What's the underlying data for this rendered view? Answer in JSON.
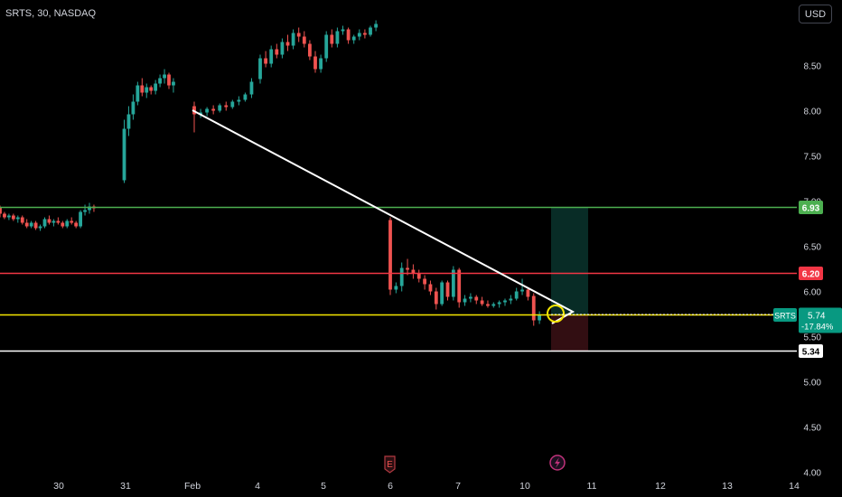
{
  "header": {
    "title": "SRTS, 30, NASDAQ",
    "currency": "USD"
  },
  "colors": {
    "background": "#000000",
    "up": "#26a69a",
    "down": "#ef5350",
    "line_green": "#4caf50",
    "line_red": "#f23645",
    "line_yellow": "#f5e600",
    "line_white": "#ffffff",
    "text": "#d1d4dc"
  },
  "price_axis": {
    "ticks": [
      "8.50",
      "8.00",
      "7.50",
      "7.00",
      "6.50",
      "6.00",
      "5.50",
      "5.00",
      "4.50",
      "4.00"
    ]
  },
  "time_axis": {
    "ticks": [
      "30",
      "31",
      "Feb",
      "4",
      "5",
      "6",
      "7",
      "10",
      "11",
      "12",
      "13",
      "14"
    ]
  },
  "events": {
    "earnings_label": "E",
    "dividend_icon": "lightning-icon"
  },
  "chart_data": {
    "type": "candlestick",
    "symbol": "SRTS",
    "interval": "30",
    "exchange": "NASDAQ",
    "ylim": [
      4.0,
      8.95
    ],
    "x_ticks": [
      "30",
      "31",
      "Feb",
      "4",
      "5",
      "6",
      "7",
      "10",
      "11",
      "12",
      "13",
      "14"
    ],
    "horizontal_lines": [
      {
        "price": 6.93,
        "label": "6.93",
        "color": "#4caf50"
      },
      {
        "price": 6.2,
        "label": "6.20",
        "color": "#f23645"
      },
      {
        "price": 5.74,
        "label": "5.74",
        "color": "#f5e600"
      },
      {
        "price": 5.34,
        "label": "5.34",
        "color": "#ffffff"
      }
    ],
    "last_price": {
      "symbol": "SRTS",
      "price": "5.74",
      "change": "-17.84%"
    },
    "candles": [
      [
        6.93,
        6.95,
        6.82,
        6.86
      ],
      [
        6.86,
        6.88,
        6.8,
        6.82
      ],
      [
        6.82,
        6.86,
        6.79,
        6.84
      ],
      [
        6.84,
        6.86,
        6.78,
        6.8
      ],
      [
        6.8,
        6.84,
        6.76,
        6.82
      ],
      [
        6.82,
        6.84,
        6.74,
        6.76
      ],
      [
        6.76,
        6.8,
        6.7,
        6.72
      ],
      [
        6.72,
        6.78,
        6.7,
        6.76
      ],
      [
        6.76,
        6.78,
        6.68,
        6.7
      ],
      [
        6.7,
        6.74,
        6.67,
        6.72
      ],
      [
        6.72,
        6.82,
        6.7,
        6.8
      ],
      [
        6.8,
        6.84,
        6.74,
        6.76
      ],
      [
        6.76,
        6.8,
        6.72,
        6.78
      ],
      [
        6.78,
        6.82,
        6.74,
        6.76
      ],
      [
        6.76,
        6.78,
        6.7,
        6.72
      ],
      [
        6.72,
        6.8,
        6.7,
        6.78
      ],
      [
        6.78,
        6.82,
        6.74,
        6.76
      ],
      [
        6.76,
        6.78,
        6.7,
        6.72
      ],
      [
        6.72,
        6.9,
        6.7,
        6.88
      ],
      [
        6.88,
        6.96,
        6.84,
        6.9
      ],
      [
        6.9,
        6.98,
        6.86,
        6.94
      ],
      [
        6.94,
        6.96,
        6.88,
        6.92
      ],
      [
        7.23,
        7.9,
        7.2,
        7.8
      ],
      [
        7.8,
        8.05,
        7.72,
        7.96
      ],
      [
        7.96,
        8.18,
        7.9,
        8.1
      ],
      [
        8.1,
        8.32,
        8.06,
        8.28
      ],
      [
        8.28,
        8.36,
        8.16,
        8.2
      ],
      [
        8.2,
        8.3,
        8.14,
        8.26
      ],
      [
        8.26,
        8.28,
        8.18,
        8.22
      ],
      [
        8.22,
        8.34,
        8.18,
        8.3
      ],
      [
        8.3,
        8.4,
        8.26,
        8.36
      ],
      [
        8.36,
        8.46,
        8.3,
        8.4
      ],
      [
        8.4,
        8.42,
        8.24,
        8.28
      ],
      [
        8.28,
        8.36,
        8.2,
        8.32
      ],
      [
        8.05,
        8.1,
        7.76,
        7.96
      ],
      [
        7.96,
        8.02,
        7.92,
        7.98
      ],
      [
        7.98,
        8.04,
        7.94,
        8.02
      ],
      [
        8.02,
        8.06,
        7.96,
        8.0
      ],
      [
        8.0,
        8.08,
        7.98,
        8.06
      ],
      [
        8.06,
        8.1,
        8.0,
        8.04
      ],
      [
        8.04,
        8.12,
        8.02,
        8.1
      ],
      [
        8.1,
        8.16,
        8.06,
        8.12
      ],
      [
        8.12,
        8.2,
        8.1,
        8.18
      ],
      [
        8.18,
        8.36,
        8.14,
        8.32
      ],
      [
        8.35,
        8.62,
        8.3,
        8.58
      ],
      [
        8.58,
        8.66,
        8.48,
        8.52
      ],
      [
        8.52,
        8.72,
        8.48,
        8.68
      ],
      [
        8.68,
        8.74,
        8.58,
        8.62
      ],
      [
        8.62,
        8.8,
        8.58,
        8.76
      ],
      [
        8.76,
        8.84,
        8.66,
        8.72
      ],
      [
        8.72,
        8.9,
        8.68,
        8.86
      ],
      [
        8.86,
        8.92,
        8.76,
        8.82
      ],
      [
        8.82,
        8.88,
        8.7,
        8.74
      ],
      [
        8.74,
        8.78,
        8.56,
        8.6
      ],
      [
        8.6,
        8.66,
        8.42,
        8.46
      ],
      [
        8.46,
        8.62,
        8.42,
        8.58
      ],
      [
        8.58,
        8.88,
        8.54,
        8.84
      ],
      [
        8.84,
        8.9,
        8.7,
        8.74
      ],
      [
        8.74,
        8.92,
        8.7,
        8.88
      ],
      [
        8.88,
        8.94,
        8.84,
        8.9
      ],
      [
        8.9,
        8.92,
        8.74,
        8.78
      ],
      [
        8.78,
        8.84,
        8.74,
        8.82
      ],
      [
        8.82,
        8.9,
        8.78,
        8.86
      ],
      [
        8.86,
        8.9,
        8.8,
        8.84
      ],
      [
        8.84,
        8.94,
        8.82,
        8.92
      ],
      [
        8.92,
        9.0,
        8.88,
        8.96
      ],
      [
        6.79,
        6.82,
        5.96,
        6.02
      ],
      [
        6.02,
        6.1,
        5.98,
        6.06
      ],
      [
        6.06,
        6.32,
        6.0,
        6.26
      ],
      [
        6.26,
        6.36,
        6.18,
        6.24
      ],
      [
        6.24,
        6.3,
        6.14,
        6.2
      ],
      [
        6.2,
        6.24,
        6.1,
        6.14
      ],
      [
        6.14,
        6.18,
        6.02,
        6.08
      ],
      [
        6.08,
        6.12,
        5.96,
        6.0
      ],
      [
        6.0,
        6.04,
        5.8,
        5.86
      ],
      [
        5.86,
        6.12,
        5.84,
        6.1
      ],
      [
        6.1,
        6.12,
        5.9,
        5.94
      ],
      [
        5.94,
        6.28,
        5.9,
        6.24
      ],
      [
        6.24,
        6.26,
        5.82,
        5.88
      ],
      [
        5.88,
        5.96,
        5.84,
        5.92
      ],
      [
        5.92,
        5.98,
        5.88,
        5.94
      ],
      [
        5.94,
        5.96,
        5.86,
        5.9
      ],
      [
        5.9,
        5.94,
        5.84,
        5.86
      ],
      [
        5.86,
        5.9,
        5.82,
        5.84
      ],
      [
        5.84,
        5.88,
        5.82,
        5.86
      ],
      [
        5.86,
        5.9,
        5.82,
        5.88
      ],
      [
        5.88,
        5.92,
        5.84,
        5.9
      ],
      [
        5.9,
        5.96,
        5.86,
        5.92
      ],
      [
        5.92,
        6.04,
        5.9,
        6.0
      ],
      [
        6.0,
        6.14,
        5.96,
        6.02
      ],
      [
        6.02,
        6.04,
        5.9,
        5.94
      ],
      [
        5.95,
        5.98,
        5.62,
        5.68
      ],
      [
        5.68,
        5.78,
        5.64,
        5.74
      ]
    ]
  }
}
